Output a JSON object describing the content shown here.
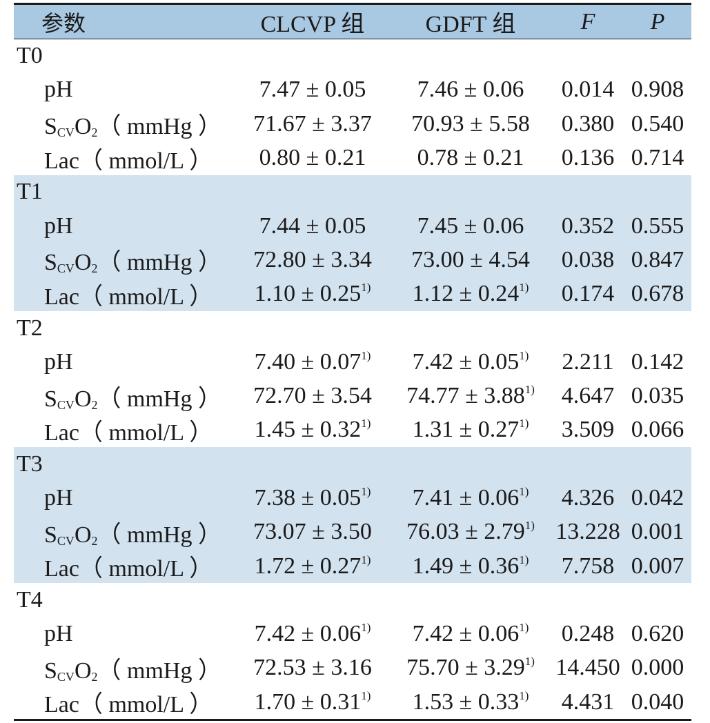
{
  "header": {
    "param": "参数",
    "clcvp": "CLCVP 组",
    "gdft": "GDFT 组",
    "f": "F",
    "p": "P"
  },
  "rows": [
    {
      "kind": "group",
      "label": "T0",
      "shade": false
    },
    {
      "kind": "sub",
      "param": "pH",
      "label": "pH",
      "a": "7.47 ± 0.05",
      "a_mark": "",
      "b": "7.46 ± 0.06",
      "b_mark": "",
      "f": "0.014",
      "p": "0.908",
      "shade": false
    },
    {
      "kind": "sub",
      "param": "scvo2",
      "label_main": "S",
      "label_sub": "CV",
      "label_rest": "O",
      "label_sub2": "2",
      "label_unit": "（ mmHg ）",
      "a": "71.67 ± 3.37",
      "a_mark": "",
      "b": "70.93 ± 5.58",
      "b_mark": "",
      "f": "0.380",
      "p": "0.540",
      "shade": false
    },
    {
      "kind": "sub",
      "param": "lac",
      "label": "Lac（ mmol/L ）",
      "a": "0.80 ± 0.21",
      "a_mark": "",
      "b": "0.78 ± 0.21",
      "b_mark": "",
      "f": "0.136",
      "p": "0.714",
      "shade": false
    },
    {
      "kind": "group",
      "label": "T1",
      "shade": true
    },
    {
      "kind": "sub",
      "param": "pH",
      "label": "pH",
      "a": "7.44 ± 0.05",
      "a_mark": "",
      "b": "7.45 ± 0.06",
      "b_mark": "",
      "f": "0.352",
      "p": "0.555",
      "shade": true
    },
    {
      "kind": "sub",
      "param": "scvo2",
      "label_main": "S",
      "label_sub": "CV",
      "label_rest": "O",
      "label_sub2": "2",
      "label_unit": "（ mmHg ）",
      "a": "72.80 ± 3.34",
      "a_mark": "",
      "b": "73.00 ± 4.54",
      "b_mark": "",
      "f": "0.038",
      "p": "0.847",
      "shade": true
    },
    {
      "kind": "sub",
      "param": "lac",
      "label": "Lac（ mmol/L ）",
      "a": "1.10 ± 0.25",
      "a_mark": "1)",
      "b": "1.12 ± 0.24",
      "b_mark": "1)",
      "f": "0.174",
      "p": "0.678",
      "shade": true
    },
    {
      "kind": "group",
      "label": "T2",
      "shade": false
    },
    {
      "kind": "sub",
      "param": "pH",
      "label": "pH",
      "a": "7.40 ± 0.07",
      "a_mark": "1)",
      "b": "7.42 ± 0.05",
      "b_mark": "1)",
      "f": "2.211",
      "p": "0.142",
      "shade": false
    },
    {
      "kind": "sub",
      "param": "scvo2",
      "label_main": "S",
      "label_sub": "CV",
      "label_rest": "O",
      "label_sub2": "2",
      "label_unit": "（ mmHg ）",
      "a": "72.70 ± 3.54",
      "a_mark": "",
      "b": "74.77 ± 3.88",
      "b_mark": "1)",
      "f": "4.647",
      "p": "0.035",
      "shade": false
    },
    {
      "kind": "sub",
      "param": "lac",
      "label": "Lac（ mmol/L ）",
      "a": "1.45 ± 0.32",
      "a_mark": "1)",
      "b": "1.31 ± 0.27",
      "b_mark": "1)",
      "f": "3.509",
      "p": "0.066",
      "shade": false
    },
    {
      "kind": "group",
      "label": "T3",
      "shade": true
    },
    {
      "kind": "sub",
      "param": "pH",
      "label": "pH",
      "a": "7.38 ± 0.05",
      "a_mark": "1)",
      "b": "7.41 ± 0.06",
      "b_mark": "1)",
      "f": "4.326",
      "p": "0.042",
      "shade": true
    },
    {
      "kind": "sub",
      "param": "scvo2",
      "label_main": "S",
      "label_sub": "CV",
      "label_rest": "O",
      "label_sub2": "2",
      "label_unit": "（ mmHg ）",
      "a": "73.07 ± 3.50",
      "a_mark": "",
      "b": "76.03 ± 2.79",
      "b_mark": "1)",
      "f": "13.228",
      "p": "0.001",
      "shade": true
    },
    {
      "kind": "sub",
      "param": "lac",
      "label": "Lac（ mmol/L ）",
      "a": "1.72 ± 0.27",
      "a_mark": "1)",
      "b": "1.49 ± 0.36",
      "b_mark": "1)",
      "f": "7.758",
      "p": "0.007",
      "shade": true
    },
    {
      "kind": "group",
      "label": "T4",
      "shade": false
    },
    {
      "kind": "sub",
      "param": "pH",
      "label": "pH",
      "a": "7.42 ± 0.06",
      "a_mark": "1)",
      "b": "7.42 ± 0.06",
      "b_mark": "1)",
      "f": "0.248",
      "p": "0.620",
      "shade": false
    },
    {
      "kind": "sub",
      "param": "scvo2",
      "label_main": "S",
      "label_sub": "CV",
      "label_rest": "O",
      "label_sub2": "2",
      "label_unit": "（ mmHg ）",
      "a": "72.53 ± 3.16",
      "a_mark": "",
      "b": "75.70 ± 3.29",
      "b_mark": "1)",
      "f": "14.450",
      "p": "0.000",
      "shade": false
    },
    {
      "kind": "sub",
      "param": "lac",
      "label": "Lac（ mmol/L ）",
      "a": "1.70 ± 0.31",
      "a_mark": "1)",
      "b": "1.53 ± 0.33",
      "b_mark": "1)",
      "f": "4.431",
      "p": "0.040",
      "shade": false
    }
  ],
  "colors": {
    "header_bg": "#a9c8e2",
    "band_bg": "#d3e2ef",
    "rule": "#1a1a1a"
  }
}
